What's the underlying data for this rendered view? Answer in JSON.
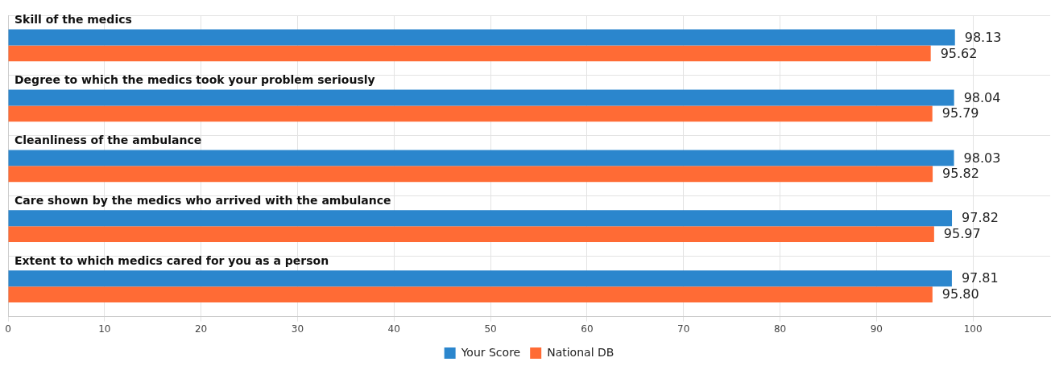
{
  "chart_data": {
    "type": "bar",
    "orientation": "horizontal",
    "categories": [
      "Skill of the medics",
      "Degree to which the medics took your problem seriously",
      "Cleanliness of the ambulance",
      "Care shown by the medics who arrived with the ambulance",
      "Extent to which medics cared for you as a person"
    ],
    "series": [
      {
        "name": "Your Score",
        "color": "#2b86cd",
        "values": [
          98.13,
          98.04,
          98.03,
          97.82,
          97.81
        ],
        "value_labels": [
          "98.13",
          "98.04",
          "98.03",
          "97.82",
          "97.81"
        ]
      },
      {
        "name": "National DB",
        "color": "#ff6b35",
        "values": [
          95.62,
          95.79,
          95.82,
          95.97,
          95.8
        ],
        "value_labels": [
          "95.62",
          "95.79",
          "95.82",
          "95.97",
          "95.80"
        ]
      }
    ],
    "xlim": [
      0,
      108
    ],
    "xticks": [
      0,
      10,
      20,
      30,
      40,
      50,
      60,
      70,
      80,
      90,
      100
    ],
    "grid": true,
    "legend": "bottom"
  }
}
